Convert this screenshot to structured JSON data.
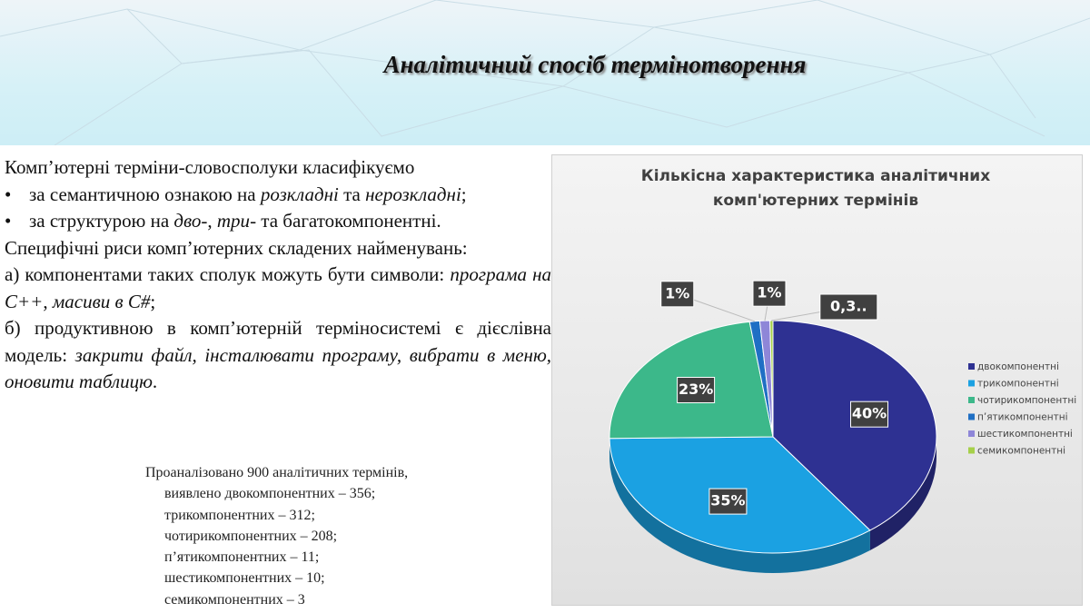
{
  "header": {
    "title": "Аналітичний спосіб термінотворення"
  },
  "text": {
    "intro": "Комп’ютерні терміни-словосполуки класифікуємо",
    "bullet1": [
      "за семантичною ознакою на ",
      "розкладні",
      " та ",
      "нерозкладні",
      ";"
    ],
    "bullet2": [
      "за структурою на ",
      "дво",
      "-, ",
      "три",
      "- та багатокомпонентні."
    ],
    "features": "Специфічні риси комп’ютерних складених найменувань:",
    "a": [
      "а) компонентами таких сполук можуть бути символи: ",
      "програма на С++",
      ", ",
      "масиви в С#",
      ";"
    ],
    "b": [
      "б) продуктивною в комп’ютерній терміносистемі є дієслівна модель: ",
      "закрити файл, інсталювати програму, вибрати в меню, оновити таблицю",
      "."
    ]
  },
  "summary": [
    "Проаналізовано 900 аналітичних термінів,",
    "виявлено двокомпонентних – 356;",
    "трикомпонентних – 312;",
    "чотирикомпонентних – 208;",
    "п’ятикомпонентних – 11;",
    "шестикомпонентних – 10;",
    "семикомпонентних – 3"
  ],
  "chart_data": {
    "type": "pie",
    "title": "Кількісна характеристика аналітичних комп'ютерних термінів",
    "categories": [
      "двокомпонентні",
      "трикомпонентні",
      "чотирикомпонентні",
      "п’ятикомпонентні",
      "шестикомпонентні",
      "семикомпонентні"
    ],
    "values": [
      40,
      35,
      23,
      1,
      1,
      0.3
    ],
    "value_labels": [
      "40%",
      "35%",
      "23%",
      "1%",
      "1%",
      "0,3.."
    ],
    "colors": [
      "#2e3192",
      "#1ba1e2",
      "#3cb88a",
      "#1f6fc4",
      "#8e86d8",
      "#a6d04a"
    ],
    "legend": "right"
  }
}
